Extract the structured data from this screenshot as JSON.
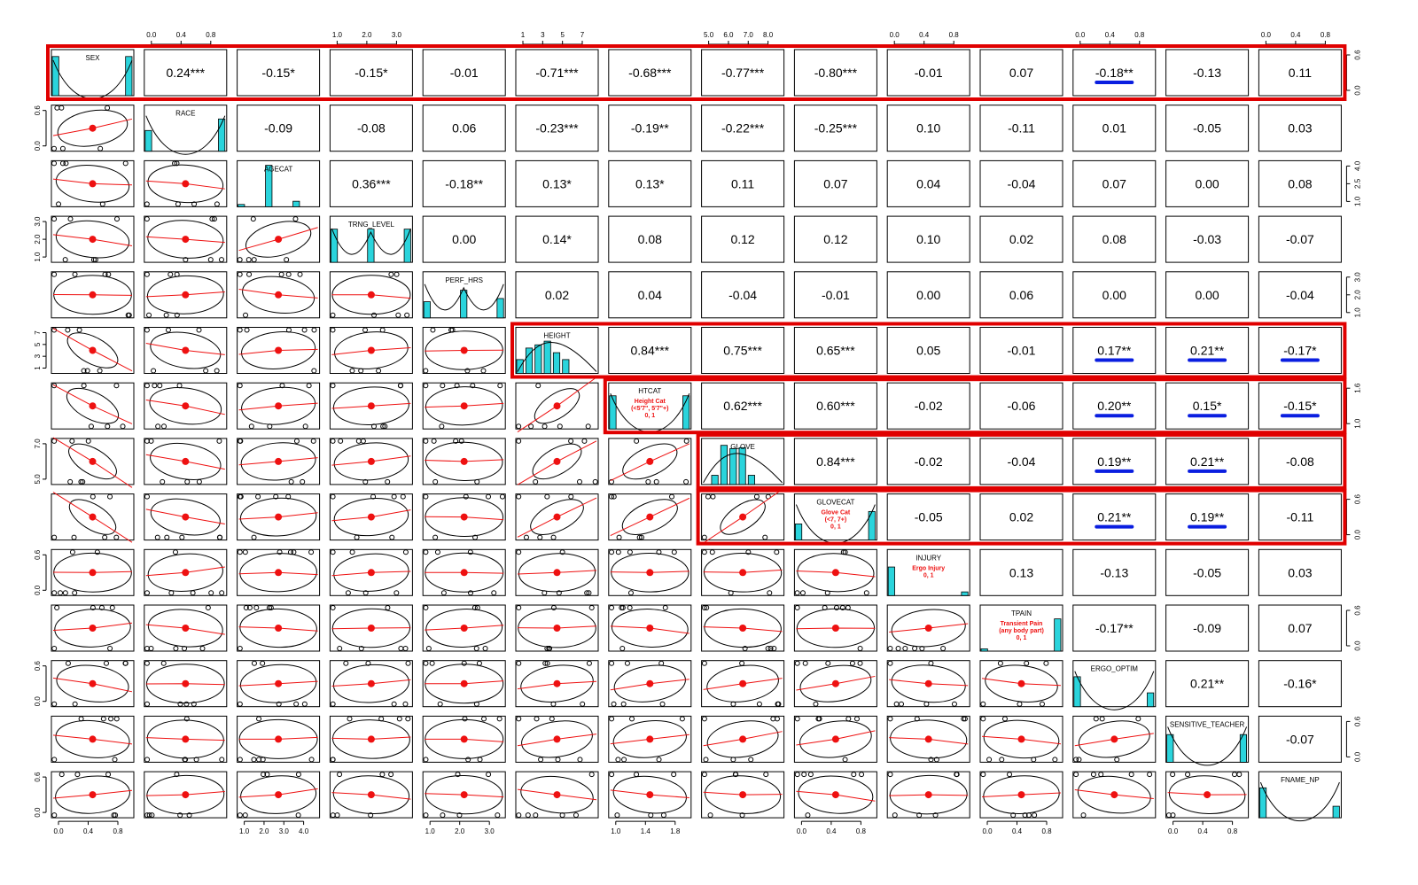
{
  "chart_data": {
    "type": "scatter-matrix",
    "variables": [
      "SEX",
      "RACE",
      "AGECAT",
      "TRNG_LEVEL",
      "PERF_HRS",
      "HEIGHT",
      "HTCAT",
      "GLOVE",
      "GLOVECAT",
      "INJURY",
      "TPAIN",
      "ERGO_OPTIM",
      "SENSITIVE_TEACHER",
      "FNAME_NP"
    ],
    "diagonal_sublabels": {
      "HTCAT": [
        "Height Cat",
        "(<5'7\", 5'7\"+)",
        "0, 1"
      ],
      "GLOVECAT": [
        "Glove Cat",
        "(<7, 7+)",
        "0, 1"
      ],
      "INJURY": [
        "Ergo Injury",
        "0, 1"
      ],
      "TPAIN": [
        "Transient Pain",
        "(any body part)",
        "0, 1"
      ]
    },
    "correlations": [
      [
        "",
        "0.24***",
        "-0.15*",
        "-0.15*",
        "-0.01",
        "-0.71***",
        "-0.68***",
        "-0.77***",
        "-0.80***",
        "-0.01",
        "0.07",
        "-0.18**",
        "-0.13",
        "0.11"
      ],
      [
        "",
        "",
        "-0.09",
        "-0.08",
        "0.06",
        "-0.23***",
        "-0.19**",
        "-0.22***",
        "-0.25***",
        "0.10",
        "-0.11",
        "0.01",
        "-0.05",
        "0.03"
      ],
      [
        "",
        "",
        "",
        "0.36***",
        "-0.18**",
        "0.13*",
        "0.13*",
        "0.11",
        "0.07",
        "0.04",
        "-0.04",
        "0.07",
        "0.00",
        "0.08"
      ],
      [
        "",
        "",
        "",
        "",
        "0.00",
        "0.14*",
        "0.08",
        "0.12",
        "0.12",
        "0.10",
        "0.02",
        "0.08",
        "-0.03",
        "-0.07"
      ],
      [
        "",
        "",
        "",
        "",
        "",
        "0.02",
        "0.04",
        "-0.04",
        "-0.01",
        "0.00",
        "0.06",
        "0.00",
        "0.00",
        "-0.04"
      ],
      [
        "",
        "",
        "",
        "",
        "",
        "",
        "0.84***",
        "0.75***",
        "0.65***",
        "0.05",
        "-0.01",
        "0.17**",
        "0.21**",
        "-0.17*"
      ],
      [
        "",
        "",
        "",
        "",
        "",
        "",
        "",
        "0.62***",
        "0.60***",
        "-0.02",
        "-0.06",
        "0.20**",
        "0.15*",
        "-0.15*"
      ],
      [
        "",
        "",
        "",
        "",
        "",
        "",
        "",
        "",
        "0.84***",
        "-0.02",
        "-0.04",
        "0.19**",
        "0.21**",
        "-0.08"
      ],
      [
        "",
        "",
        "",
        "",
        "",
        "",
        "",
        "",
        "",
        "-0.05",
        "0.02",
        "0.21**",
        "0.19**",
        "-0.11"
      ],
      [
        "",
        "",
        "",
        "",
        "",
        "",
        "",
        "",
        "",
        "",
        "0.13",
        "-0.13",
        "-0.05",
        "0.03"
      ],
      [
        "",
        "",
        "",
        "",
        "",
        "",
        "",
        "",
        "",
        "",
        "",
        "-0.17**",
        "-0.09",
        "0.07"
      ],
      [
        "",
        "",
        "",
        "",
        "",
        "",
        "",
        "",
        "",
        "",
        "",
        "",
        "0.21**",
        "-0.16*"
      ],
      [
        "",
        "",
        "",
        "",
        "",
        "",
        "",
        "",
        "",
        "",
        "",
        "",
        "",
        "-0.07"
      ],
      [
        "",
        "",
        "",
        "",
        "",
        "",
        "",
        "",
        "",
        "",
        "",
        "",
        "",
        ""
      ]
    ],
    "underlined_cells": [
      [
        0,
        11
      ],
      [
        5,
        11
      ],
      [
        5,
        12
      ],
      [
        5,
        13
      ],
      [
        6,
        11
      ],
      [
        6,
        12
      ],
      [
        6,
        13
      ],
      [
        7,
        11
      ],
      [
        7,
        12
      ],
      [
        8,
        11
      ],
      [
        8,
        12
      ]
    ],
    "highlight_boxes": [
      {
        "rows": [
          0,
          0
        ],
        "cols": [
          0,
          13
        ]
      },
      {
        "rows": [
          5,
          5
        ],
        "cols": [
          5,
          13
        ]
      },
      {
        "rows": [
          6,
          6
        ],
        "cols": [
          6,
          13
        ]
      },
      {
        "rows": [
          7,
          7
        ],
        "cols": [
          7,
          13
        ]
      },
      {
        "rows": [
          8,
          8
        ],
        "cols": [
          7,
          13
        ]
      }
    ],
    "top_axis_ticks": [
      {
        "col": 1,
        "labels": [
          "0.0",
          "0.4",
          "0.8"
        ]
      },
      {
        "col": 3,
        "labels": [
          "1.0",
          "2.0",
          "3.0"
        ]
      },
      {
        "col": 5,
        "labels": [
          "1",
          "3",
          "5",
          "7"
        ]
      },
      {
        "col": 7,
        "labels": [
          "5.0",
          "6.0",
          "7.0",
          "8.0"
        ]
      },
      {
        "col": 9,
        "labels": [
          "0.0",
          "0.4",
          "0.8"
        ]
      },
      {
        "col": 11,
        "labels": [
          "0.0",
          "0.4",
          "0.8"
        ]
      },
      {
        "col": 13,
        "labels": [
          "0.0",
          "0.4",
          "0.8"
        ]
      }
    ],
    "bottom_axis_ticks": [
      {
        "col": 0,
        "labels": [
          "0.0",
          "0.4",
          "0.8"
        ]
      },
      {
        "col": 2,
        "labels": [
          "1.0",
          "2.0",
          "3.0",
          "4.0"
        ]
      },
      {
        "col": 4,
        "labels": [
          "1.0",
          "2.0",
          "3.0"
        ]
      },
      {
        "col": 6,
        "labels": [
          "1.0",
          "1.4",
          "1.8"
        ]
      },
      {
        "col": 8,
        "labels": [
          "0.0",
          "0.4",
          "0.8"
        ]
      },
      {
        "col": 10,
        "labels": [
          "0.0",
          "0.4",
          "0.8"
        ]
      },
      {
        "col": 12,
        "labels": [
          "0.0",
          "0.4",
          "0.8"
        ]
      }
    ],
    "left_axis_ticks": [
      {
        "row": 1,
        "labels": [
          "0.0",
          "0.6"
        ]
      },
      {
        "row": 3,
        "labels": [
          "1.0",
          "2.0",
          "3.0"
        ]
      },
      {
        "row": 5,
        "labels": [
          "1",
          "3",
          "5",
          "7"
        ]
      },
      {
        "row": 7,
        "labels": [
          "5.0",
          "7.0"
        ]
      },
      {
        "row": 9,
        "labels": [
          "0.0",
          "0.6"
        ]
      },
      {
        "row": 11,
        "labels": [
          "0.0",
          "0.6"
        ]
      },
      {
        "row": 13,
        "labels": [
          "0.0",
          "0.6"
        ]
      }
    ],
    "right_axis_ticks": [
      {
        "row": 0,
        "labels": [
          "0.0",
          "0.6"
        ]
      },
      {
        "row": 2,
        "labels": [
          "1.0",
          "2.5",
          "4.0"
        ]
      },
      {
        "row": 4,
        "labels": [
          "1.0",
          "2.0",
          "3.0"
        ]
      },
      {
        "row": 6,
        "labels": [
          "1.0",
          "1.6"
        ]
      },
      {
        "row": 8,
        "labels": [
          "0.0",
          "0.6"
        ]
      },
      {
        "row": 10,
        "labels": [
          "0.0",
          "0.6"
        ]
      },
      {
        "row": 12,
        "labels": [
          "0.0",
          "0.6"
        ]
      }
    ],
    "diagonal_histograms": [
      {
        "bars": [
          0.85,
          0,
          0,
          0,
          0,
          0,
          0,
          0,
          0.85
        ],
        "curve": "u"
      },
      {
        "bars": [
          0.45,
          0,
          0,
          0,
          0,
          0,
          0,
          0,
          0.7
        ],
        "curve": "u"
      },
      {
        "bars": [
          0.05,
          0,
          0,
          0.9,
          0,
          0,
          0.12,
          0,
          0
        ],
        "curve": "none"
      },
      {
        "bars": [
          0.72,
          0,
          0,
          0,
          0.72,
          0,
          0,
          0,
          0.72
        ],
        "curve": "w"
      },
      {
        "bars": [
          0.35,
          0,
          0,
          0,
          0.6,
          0,
          0,
          0,
          0.42
        ],
        "curve": "w"
      },
      {
        "bars": [
          0.3,
          0.55,
          0.62,
          0.7,
          0.45,
          0.3,
          0,
          0,
          0
        ],
        "curve": "bell"
      },
      {
        "bars": [
          0.72,
          0,
          0,
          0,
          0,
          0,
          0,
          0,
          0.72
        ],
        "curve": "u"
      },
      {
        "bars": [
          0,
          0.2,
          0.85,
          0.78,
          0.8,
          0.2,
          0,
          0,
          0
        ],
        "curve": "bell"
      },
      {
        "bars": [
          0.35,
          0,
          0,
          0,
          0,
          0,
          0,
          0,
          0.62
        ],
        "curve": "u"
      },
      {
        "bars": [
          0.62,
          0,
          0,
          0,
          0,
          0,
          0,
          0,
          0.08
        ],
        "curve": "none"
      },
      {
        "bars": [
          0.05,
          0,
          0,
          0,
          0,
          0,
          0,
          0,
          0.7
        ],
        "curve": "none"
      },
      {
        "bars": [
          0.65,
          0,
          0,
          0,
          0,
          0,
          0,
          0,
          0.3
        ],
        "curve": "u"
      },
      {
        "bars": [
          0.6,
          0,
          0,
          0,
          0,
          0,
          0,
          0,
          0.6
        ],
        "curve": "u"
      },
      {
        "bars": [
          0.65,
          0,
          0,
          0,
          0,
          0,
          0,
          0,
          0.25
        ],
        "curve": "u"
      }
    ],
    "colors": {
      "highlight": "#e00000",
      "underline": "#0a1ee0",
      "histogram": "#2ad4dc",
      "fit": "#ee1111",
      "text": "#000000",
      "sublabel": "#ee1111"
    }
  }
}
